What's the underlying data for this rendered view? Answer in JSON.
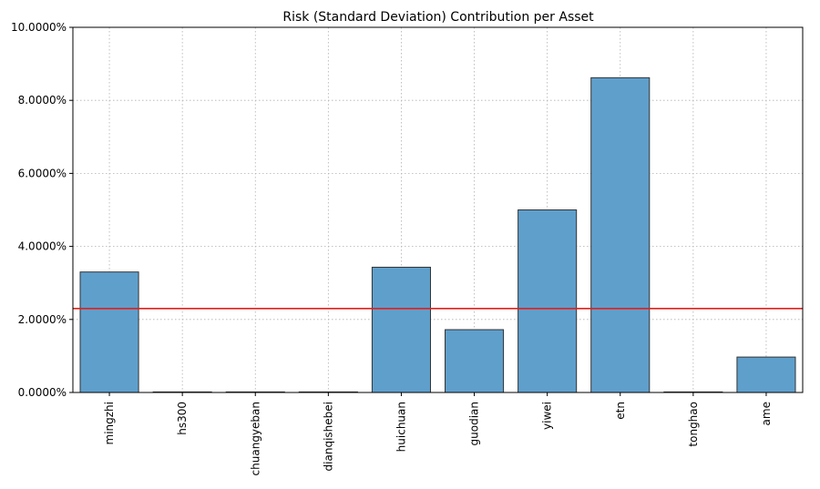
{
  "chart_data": {
    "type": "bar",
    "title": "Risk (Standard Deviation) Contribution per Asset",
    "xlabel": "",
    "ylabel": "",
    "categories": [
      "mingzhi",
      "hs300",
      "chuangyeban",
      "dianqishebei",
      "huichuan",
      "guodian",
      "yiwei",
      "etn",
      "tonghao",
      "ame"
    ],
    "values": [
      3.3,
      0.0,
      0.0,
      0.0,
      3.43,
      1.72,
      5.0,
      8.62,
      0.0,
      0.97
    ],
    "value_unit": "%",
    "ylim": [
      0,
      10
    ],
    "yticks": [
      "0.0000%",
      "2.0000%",
      "4.0000%",
      "6.0000%",
      "8.0000%",
      "10.0000%"
    ],
    "reference_line": {
      "value": 2.3,
      "color": "#e0201b"
    },
    "bar_color": "#5f9fcc",
    "bar_edge_color": "#333333",
    "grid": true
  }
}
